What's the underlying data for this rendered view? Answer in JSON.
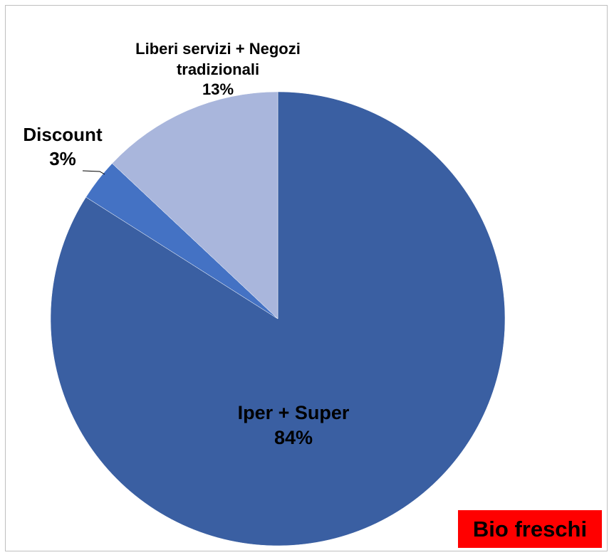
{
  "chart_data": {
    "type": "pie",
    "categories": [
      "Iper + Super",
      "Discount",
      "Liberi servizi + Negozi tradizionali"
    ],
    "values": [
      84,
      3,
      13
    ],
    "value_labels": [
      "84%",
      "3%",
      "13%"
    ],
    "colors": [
      "#3a5fa2",
      "#4472c4",
      "#a9b6dc"
    ],
    "annotation": "Bio freschi"
  }
}
